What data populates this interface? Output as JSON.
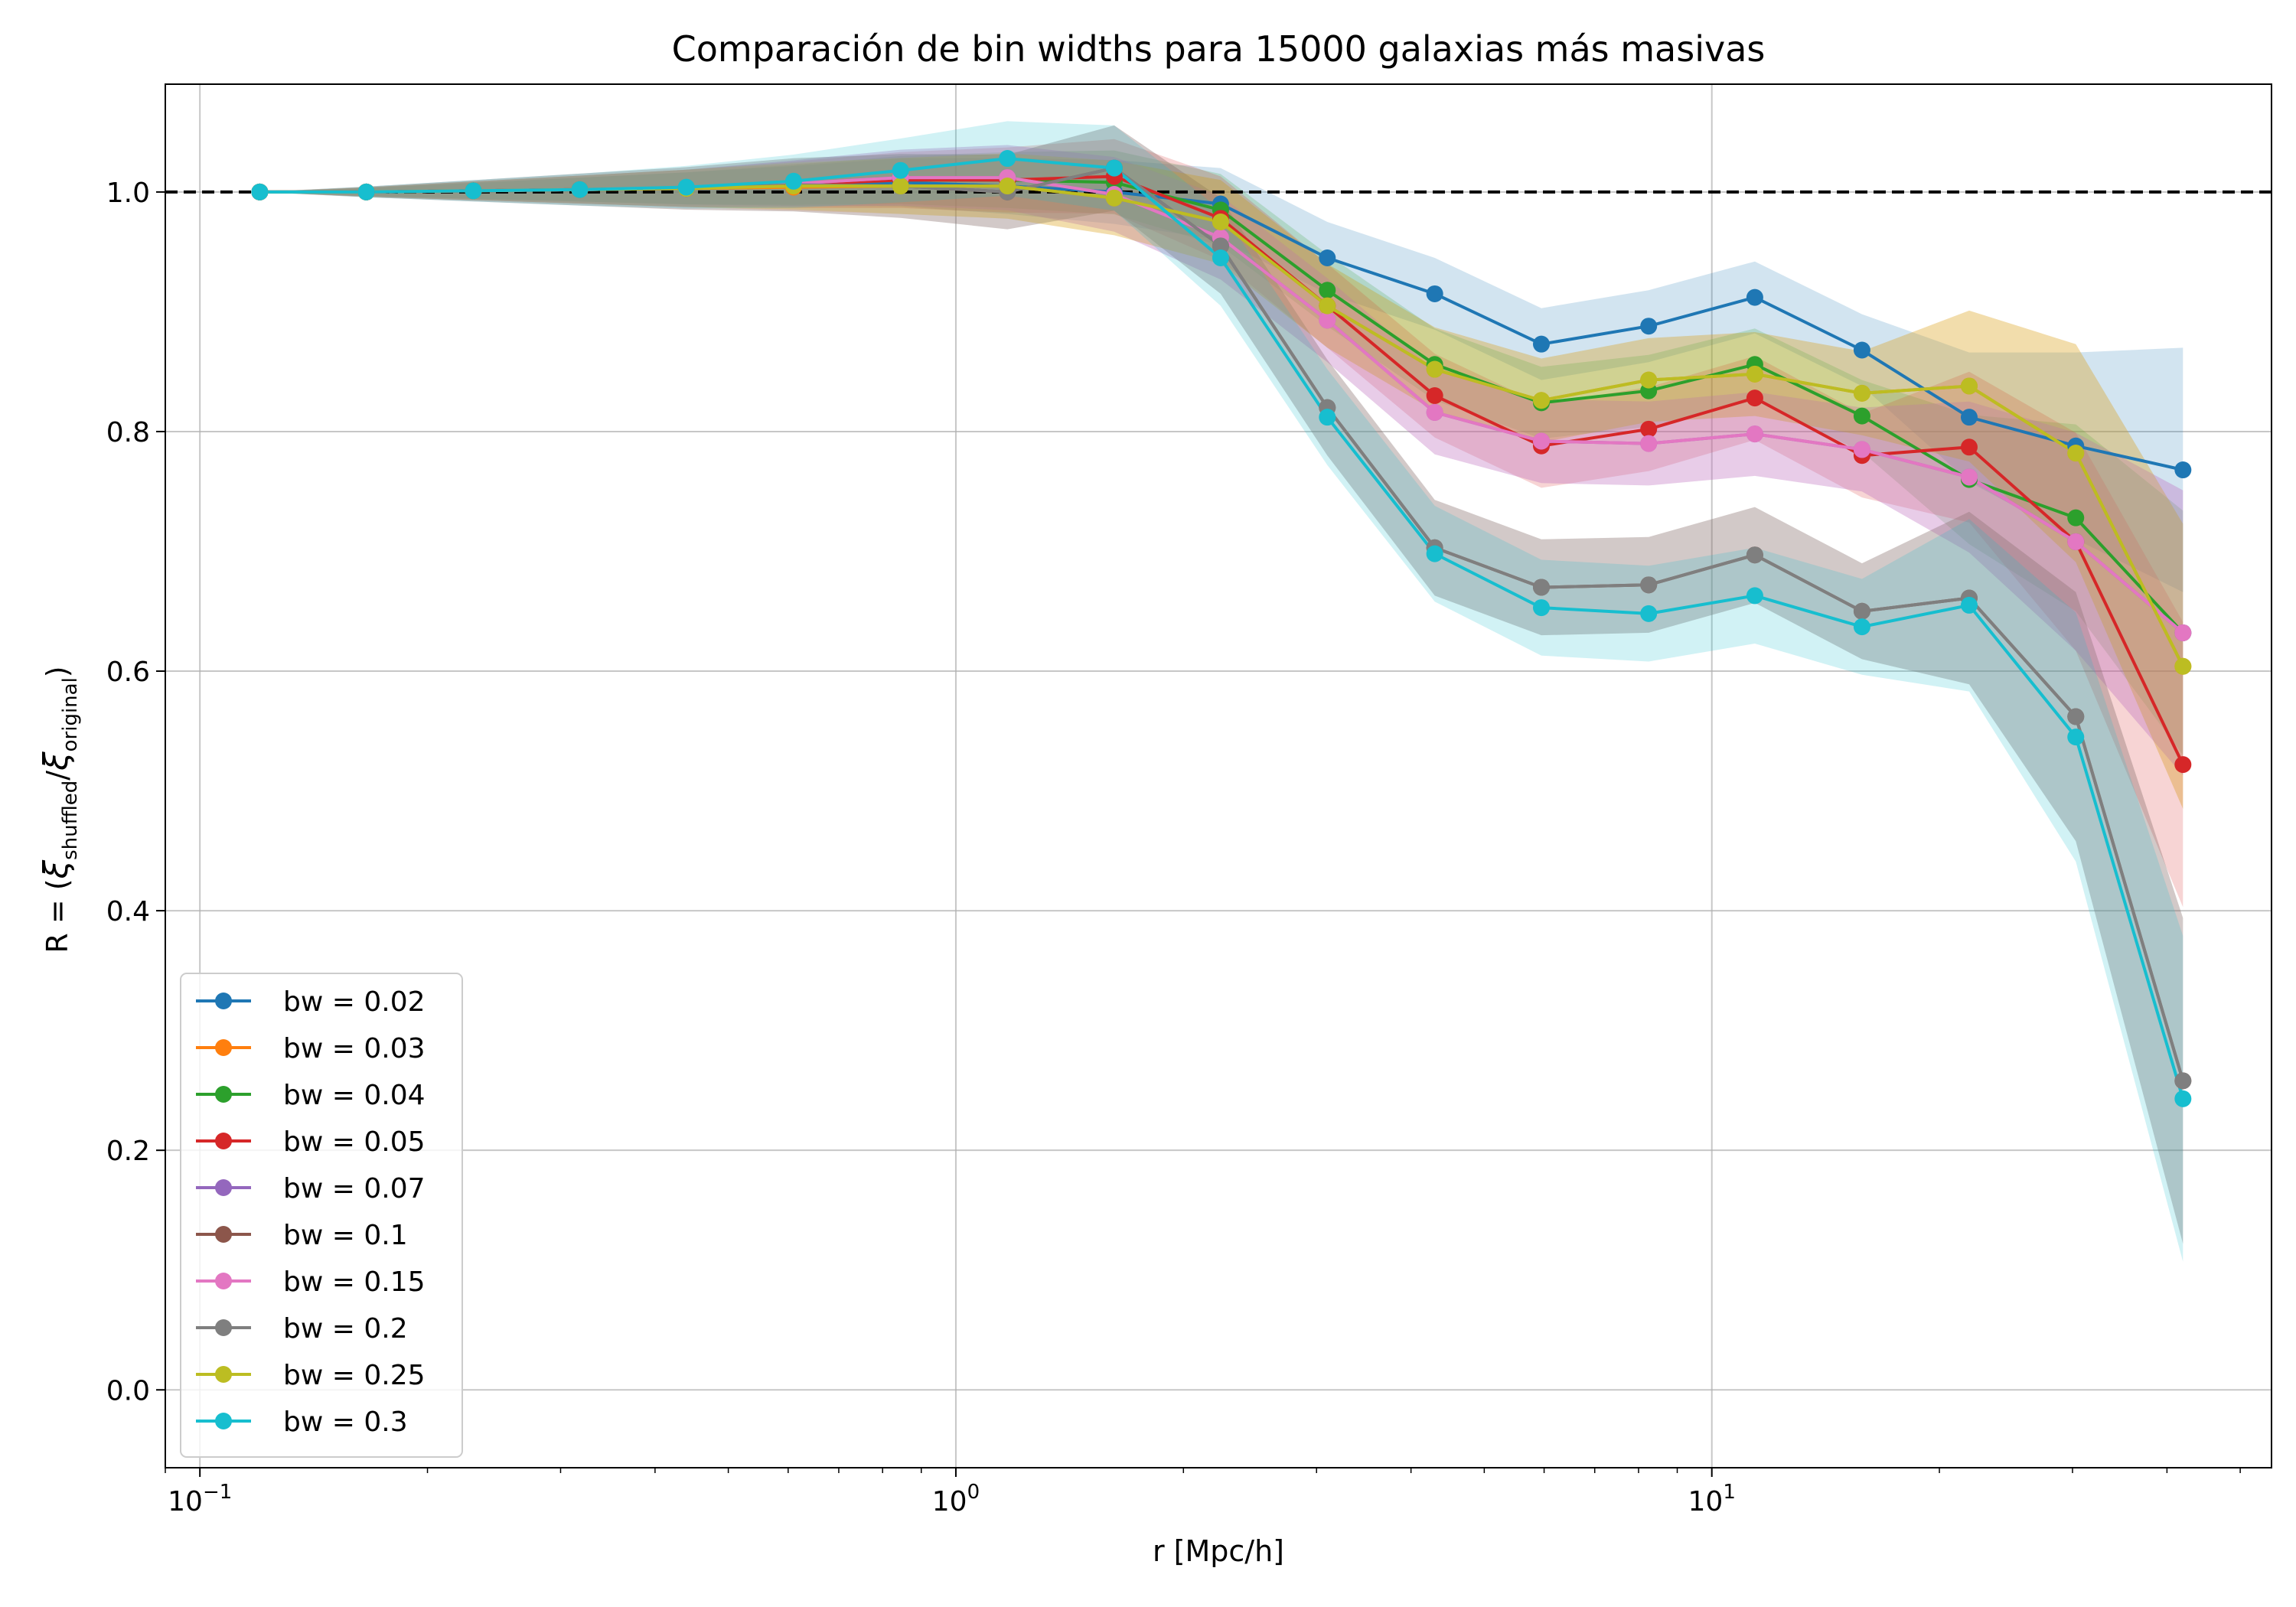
{
  "chart_data": {
    "type": "line",
    "title": "Comparación de bin widths para 15000 galaxias más masivas",
    "xlabel": "r [Mpc/h]",
    "ylabel": {
      "prefix": "R = (",
      "xi1": "ξ",
      "sub1": "shuffled",
      "slash": "/",
      "xi2": "ξ",
      "sub2": "original",
      "suffix": ")"
    },
    "xscale": "log",
    "xlim": [
      0.09,
      55
    ],
    "ylim": [
      -0.065,
      1.09
    ],
    "xticks": [
      {
        "value": 0.1,
        "base": "10",
        "exp": "−1"
      },
      {
        "value": 1,
        "base": "10",
        "exp": "0"
      },
      {
        "value": 10,
        "base": "10",
        "exp": "1"
      }
    ],
    "yticks": [
      "0.0",
      "0.2",
      "0.4",
      "0.6",
      "0.8",
      "1.0"
    ],
    "grid": true,
    "reference_line": {
      "y": 1.0,
      "style": "dashed",
      "color": "#000000"
    },
    "legend_position": "lower-left",
    "x": [
      0.12,
      0.166,
      0.23,
      0.318,
      0.44,
      0.61,
      0.845,
      1.17,
      1.62,
      2.24,
      3.1,
      4.3,
      5.95,
      8.25,
      11.4,
      15.8,
      21.9,
      30.3,
      42.0
    ],
    "series": [
      {
        "name": "bw = 0.02",
        "color": "#1f77b4",
        "values": [
          1.0,
          1.0,
          1.001,
          1.002,
          1.003,
          1.005,
          1.008,
          1.005,
          1.0,
          0.99,
          0.945,
          0.915,
          0.873,
          0.888,
          0.912,
          0.868,
          0.812,
          0.788,
          0.768
        ],
        "band": 0.03
      },
      {
        "name": "bw = 0.03",
        "color": "#ff7f0e",
        "values": [
          1.0,
          1.0,
          1.001,
          1.002,
          1.003,
          1.004,
          1.005,
          1.005,
          0.995,
          0.975,
          0.905,
          0.852,
          0.826,
          0.843,
          0.848,
          0.832,
          0.838,
          0.782,
          0.604
        ],
        "band": 0.035
      },
      {
        "name": "bw = 0.04",
        "color": "#2ca02c",
        "values": [
          1.0,
          1.0,
          1.001,
          1.002,
          1.003,
          1.006,
          1.01,
          1.01,
          1.008,
          0.985,
          0.918,
          0.856,
          0.824,
          0.834,
          0.856,
          0.813,
          0.76,
          0.728,
          0.632
        ],
        "band": 0.03
      },
      {
        "name": "bw = 0.05",
        "color": "#d62728",
        "values": [
          1.0,
          1.0,
          1.001,
          1.002,
          1.003,
          1.006,
          1.01,
          1.01,
          1.013,
          0.978,
          0.905,
          0.83,
          0.788,
          0.802,
          0.828,
          0.78,
          0.787,
          0.708,
          0.522
        ],
        "band": 0.035
      },
      {
        "name": "bw = 0.07",
        "color": "#9467bd",
        "values": [
          1.0,
          1.0,
          1.001,
          1.002,
          1.003,
          1.007,
          1.012,
          1.012,
          0.998,
          0.962,
          0.893,
          0.816,
          0.792,
          0.79,
          0.798,
          0.785,
          0.762,
          0.708,
          0.632
        ],
        "band": 0.035
      },
      {
        "name": "bw = 0.1",
        "color": "#8c564b",
        "values": [
          1.0,
          1.0,
          1.001,
          1.002,
          1.003,
          1.006,
          1.005,
          1.0,
          1.02,
          0.955,
          0.82,
          0.703,
          0.67,
          0.672,
          0.697,
          0.65,
          0.661,
          0.562,
          0.258
        ],
        "band": 0.04
      },
      {
        "name": "bw = 0.15",
        "color": "#e377c2",
        "values": [
          1.0,
          1.0,
          1.001,
          1.002,
          1.003,
          1.007,
          1.012,
          1.012,
          0.998,
          0.962,
          0.893,
          0.816,
          0.792,
          0.79,
          0.798,
          0.785,
          0.762,
          0.708,
          0.632
        ],
        "band": 0.035
      },
      {
        "name": "bw = 0.2",
        "color": "#7f7f7f",
        "values": [
          1.0,
          1.0,
          1.001,
          1.002,
          1.003,
          1.006,
          1.005,
          1.0,
          1.02,
          0.955,
          0.82,
          0.703,
          0.67,
          0.672,
          0.697,
          0.65,
          0.661,
          0.562,
          0.258
        ],
        "band": 0.04
      },
      {
        "name": "bw = 0.25",
        "color": "#bcbd22",
        "values": [
          1.0,
          1.0,
          1.001,
          1.002,
          1.003,
          1.005,
          1.005,
          1.005,
          0.995,
          0.975,
          0.905,
          0.852,
          0.826,
          0.843,
          0.848,
          0.832,
          0.838,
          0.782,
          0.604
        ],
        "band": 0.035
      },
      {
        "name": "bw = 0.3",
        "color": "#17becf",
        "values": [
          1.0,
          1.0,
          1.001,
          1.002,
          1.004,
          1.009,
          1.018,
          1.028,
          1.02,
          0.945,
          0.812,
          0.698,
          0.653,
          0.648,
          0.663,
          0.637,
          0.655,
          0.545,
          0.243
        ],
        "band": 0.04
      }
    ]
  }
}
